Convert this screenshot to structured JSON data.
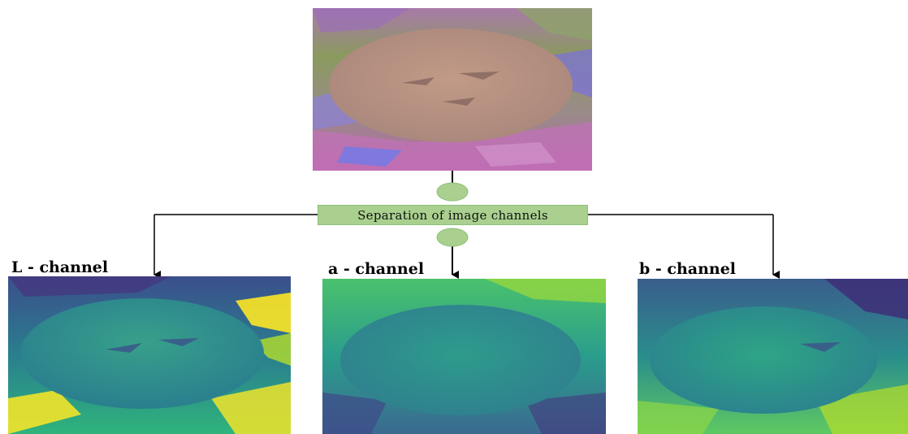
{
  "process": {
    "label": "Separation of image channels"
  },
  "channels": [
    {
      "label": "L - channel"
    },
    {
      "label": "a - channel"
    },
    {
      "label": "b - channel"
    }
  ],
  "colors": {
    "process_fill": "#a9d08e",
    "connector_node": "#a9d08e",
    "line": "#000000"
  }
}
